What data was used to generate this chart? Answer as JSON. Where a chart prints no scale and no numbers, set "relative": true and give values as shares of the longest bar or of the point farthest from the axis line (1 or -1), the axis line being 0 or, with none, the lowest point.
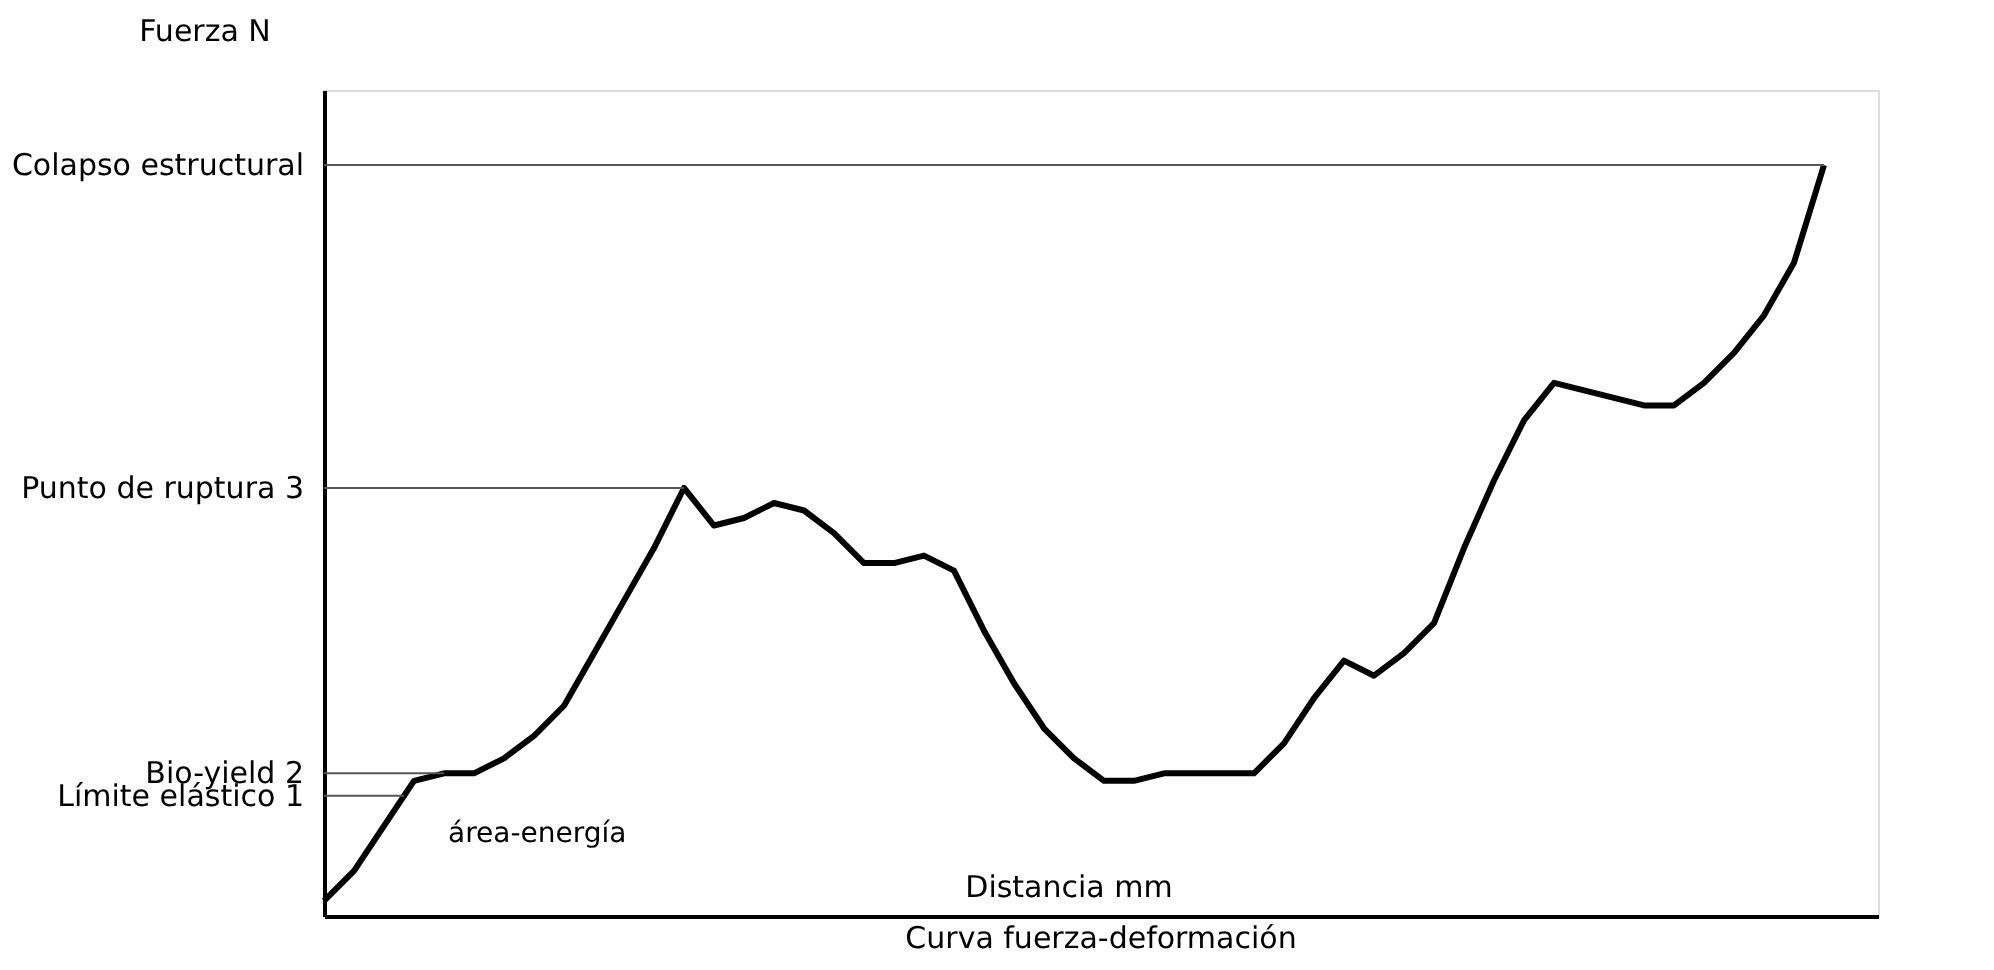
{
  "chart_data": {
    "type": "line",
    "relative": true,
    "title": "Curva fuerza-deformación",
    "xlabel": "Distancia mm",
    "ylabel": "Fuerza N",
    "color": "#000000",
    "line_style": "solid",
    "categories": [
      null,
      null,
      null,
      null,
      null,
      null,
      null,
      null,
      null,
      null,
      null,
      null,
      null,
      null,
      null,
      null,
      null,
      null,
      null,
      null,
      null,
      null,
      null,
      null,
      null,
      null,
      null,
      null,
      null,
      null,
      null,
      null,
      null,
      null,
      null,
      null,
      null,
      null,
      null,
      null,
      null,
      null,
      null,
      null,
      null,
      null,
      null,
      null,
      null,
      null,
      null
    ],
    "values": [
      0.02,
      0.06,
      0.12,
      0.18,
      0.19,
      0.19,
      0.21,
      0.24,
      0.28,
      0.35,
      0.42,
      0.49,
      0.57,
      0.52,
      0.53,
      0.55,
      0.54,
      0.51,
      0.47,
      0.47,
      0.48,
      0.46,
      0.38,
      0.31,
      0.25,
      0.21,
      0.18,
      0.18,
      0.19,
      0.19,
      0.19,
      0.19,
      0.23,
      0.29,
      0.34,
      0.32,
      0.35,
      0.39,
      0.49,
      0.58,
      0.66,
      0.71,
      0.7,
      0.69,
      0.68,
      0.68,
      0.71,
      0.75,
      0.8,
      0.87,
      1.0
    ],
    "ref_lines": [
      {
        "axis": "y",
        "value": 1.0,
        "label": "Colapso estructural"
      },
      {
        "axis": "y",
        "value": 0.57,
        "label": "Punto de ruptura 3"
      },
      {
        "axis": "y",
        "value": 0.19,
        "label": "Bio-yield 2"
      },
      {
        "axis": "y",
        "value": 0.16,
        "label": "Límite elástico 1"
      }
    ],
    "annotations": [
      "área-energía"
    ]
  }
}
